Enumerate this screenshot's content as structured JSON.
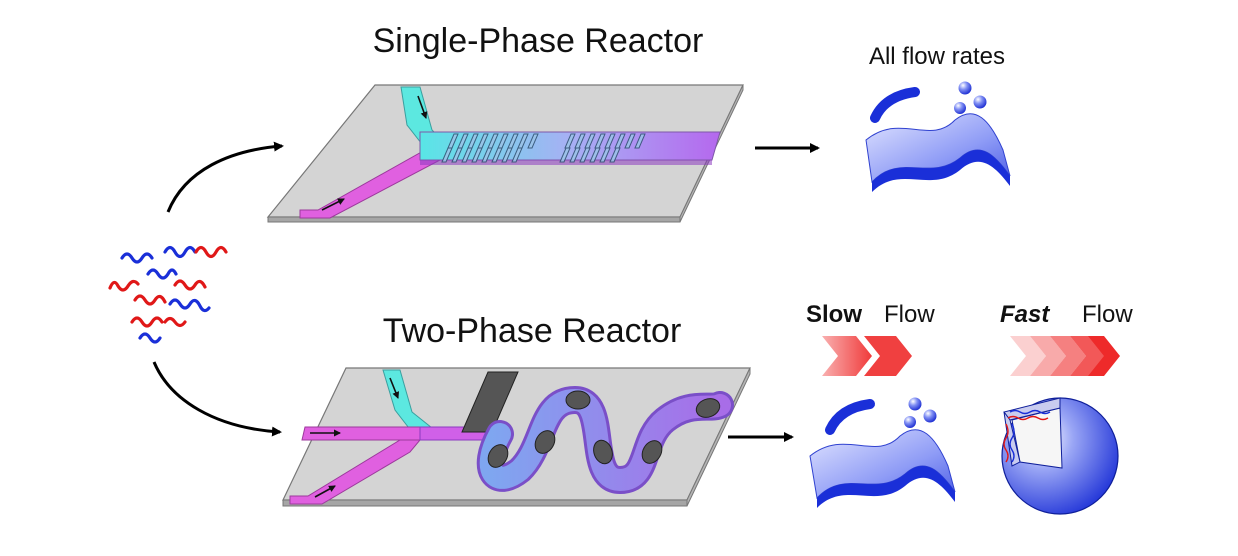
{
  "single_phase": {
    "title": "Single-Phase Reactor",
    "result_label": "All flow rates"
  },
  "two_phase": {
    "title": "Two-Phase Reactor",
    "slow_word": "Slow",
    "slow_flow": "Flow",
    "fast_word": "Fast",
    "fast_flow": "Flow"
  },
  "colors": {
    "cyan_stream": "#5ce8e0",
    "magenta_stream": "#e060e0",
    "mixed_stream": "#b070f0",
    "polymer_blue": "#1a2fd8",
    "polymer_red": "#e01818",
    "chevron_red": "#f03a3a",
    "chip_gray": "#d4d4d4",
    "segment_gray": "#555555"
  },
  "icons": {
    "polymer_chains": "wavy-polymer-chains-icon",
    "sheet_aggregate": "wavy-sheet-aggregate-icon",
    "vesicle": "cutaway-vesicle-icon"
  }
}
